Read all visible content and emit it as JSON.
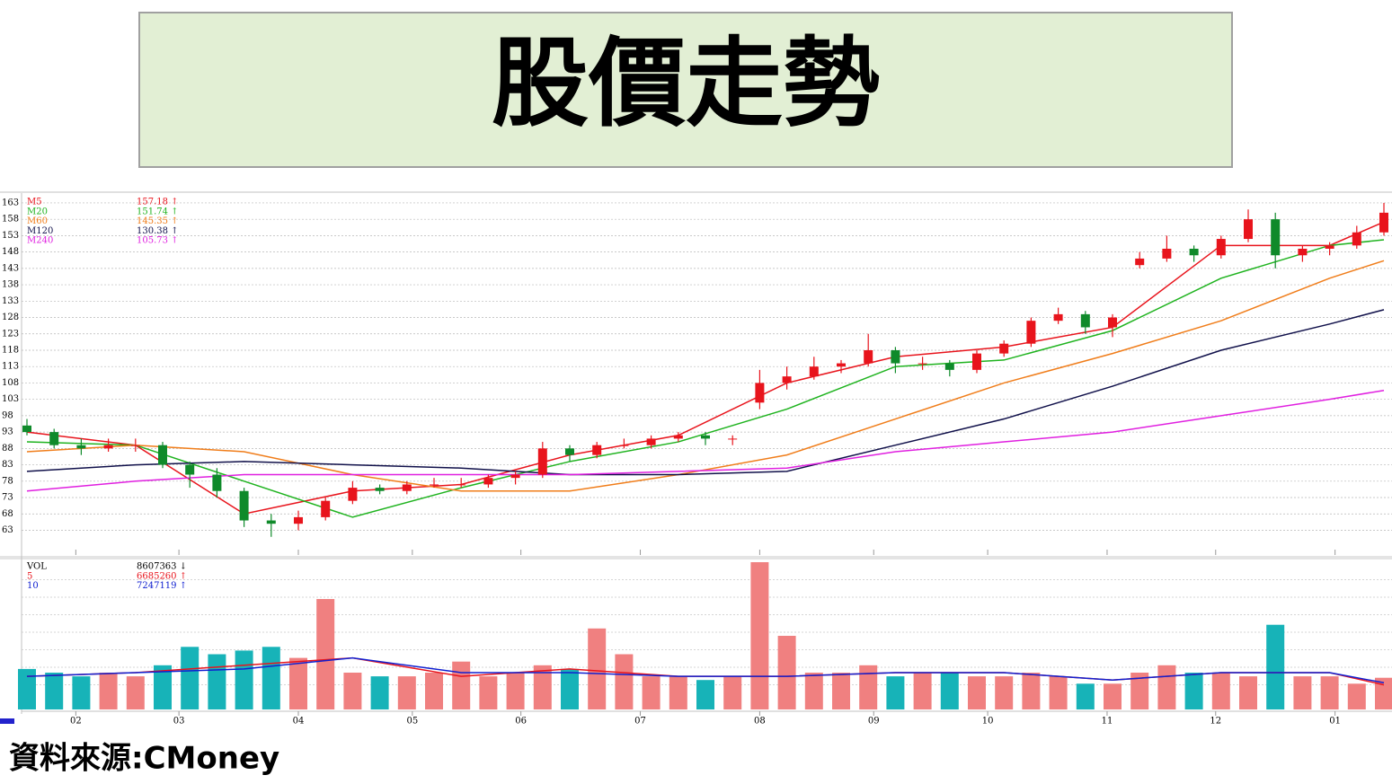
{
  "header": {
    "title": "股價走勢"
  },
  "source": "資料來源:CMoney",
  "chart_data": [
    {
      "type": "candlestick",
      "x": [
        0,
        5,
        10,
        15,
        20,
        25,
        30,
        35,
        40,
        45,
        50,
        55,
        60,
        65,
        70,
        75,
        80,
        85,
        90,
        95,
        100,
        105,
        110,
        115,
        120,
        125,
        130,
        135,
        140,
        145,
        150,
        155,
        160,
        165,
        170,
        175,
        180,
        185,
        190,
        195,
        200,
        205,
        210,
        215,
        220,
        225,
        230,
        235,
        240,
        245,
        250
      ],
      "open": [
        95,
        93,
        89,
        88,
        89,
        89,
        83,
        80,
        75,
        66,
        65,
        67,
        72,
        76,
        75,
        77,
        77,
        77,
        79,
        80,
        88,
        86,
        89,
        89,
        91,
        92,
        91,
        102,
        108,
        110,
        113,
        114,
        118,
        114,
        114,
        112,
        117,
        120,
        127,
        129,
        125,
        144,
        146,
        149,
        147,
        152,
        158,
        147,
        149,
        150,
        154
      ],
      "close": [
        93,
        89,
        88,
        89,
        89,
        83,
        80,
        75,
        66,
        65,
        67,
        72,
        76,
        75,
        77,
        77,
        77,
        79,
        80,
        88,
        86,
        89,
        89,
        91,
        92,
        91,
        91,
        108,
        110,
        113,
        114,
        118,
        114,
        114,
        112,
        117,
        120,
        127,
        129,
        125,
        128,
        146,
        149,
        147,
        152,
        158,
        147,
        149,
        150,
        154,
        160
      ],
      "high": [
        97,
        94,
        91,
        91,
        91,
        90,
        84,
        82,
        76,
        68,
        69,
        73,
        78,
        77,
        78,
        79,
        79,
        80,
        81,
        90,
        89,
        90,
        91,
        92,
        93,
        93,
        92,
        112,
        113,
        116,
        115,
        123,
        119,
        116,
        115,
        118,
        121,
        128,
        131,
        130,
        129,
        148,
        153,
        150,
        153,
        161,
        160,
        150,
        151,
        156,
        163
      ],
      "low": [
        92,
        88,
        86,
        87,
        87,
        82,
        76,
        73,
        64,
        61,
        63,
        66,
        71,
        74,
        74,
        76,
        76,
        76,
        77,
        79,
        84,
        85,
        88,
        88,
        90,
        89,
        89,
        100,
        106,
        109,
        111,
        113,
        111,
        112,
        110,
        111,
        116,
        119,
        126,
        123,
        122,
        143,
        145,
        145,
        146,
        151,
        143,
        145,
        147,
        149,
        153
      ],
      "up_color": "#e8141c",
      "down_color": "#0f8a2a",
      "xlim": [
        0,
        250
      ],
      "xticks": [
        {
          "value": 9,
          "label": "02"
        },
        {
          "value": 28,
          "label": "03"
        },
        {
          "value": 50,
          "label": "04"
        },
        {
          "value": 71,
          "label": "05"
        },
        {
          "value": 91,
          "label": "06"
        },
        {
          "value": 113,
          "label": "07"
        },
        {
          "value": 135,
          "label": "08"
        },
        {
          "value": 156,
          "label": "09"
        },
        {
          "value": 177,
          "label": "10"
        },
        {
          "value": 199,
          "label": "11"
        },
        {
          "value": 219,
          "label": "12"
        },
        {
          "value": 241,
          "label": "01"
        }
      ],
      "ylim": [
        56,
        166
      ],
      "yticks": [
        63,
        68,
        73,
        78,
        83,
        88,
        93,
        98,
        103,
        108,
        113,
        118,
        123,
        128,
        133,
        138,
        143,
        148,
        153,
        158,
        163
      ],
      "grid": true,
      "lines": {
        "x": [
          0,
          20,
          40,
          60,
          80,
          100,
          120,
          140,
          160,
          180,
          200,
          220,
          240,
          250
        ],
        "series": [
          {
            "name": "M5",
            "color": "#e8141c",
            "values": [
              93,
              89,
              68,
              75,
              77,
              86,
              92,
              108,
              116,
              119,
              125,
              150,
              150,
              157.18
            ],
            "last_label": "157.18 ↑"
          },
          {
            "name": "M20",
            "color": "#1fb31f",
            "values": [
              90,
              89,
              78,
              67,
              76,
              84,
              90,
              100,
              113,
              115,
              124,
              140,
              150,
              151.74
            ],
            "last_label": "151.74 ↑"
          },
          {
            "name": "M60",
            "color": "#f07d1a",
            "values": [
              87,
              89,
              87,
              80,
              75,
              75,
              80,
              86,
              97,
              108,
              117,
              127,
              140,
              145.35
            ],
            "last_label": "145.35 ↑"
          },
          {
            "name": "M120",
            "color": "#10104a",
            "values": [
              81,
              83,
              84,
              83,
              82,
              80,
              80,
              81,
              89,
              97,
              107,
              118,
              126,
              130.38
            ],
            "last_label": "130.38 ↑"
          },
          {
            "name": "M240",
            "color": "#e020e0",
            "values": [
              75,
              78,
              80,
              80,
              80,
              80,
              81,
              82,
              87,
              90,
              93,
              98,
              103,
              105.73
            ],
            "last_label": "105.73 ↑"
          }
        ]
      }
    },
    {
      "type": "volume",
      "name": "VOL",
      "last_label": "8607363 ↓",
      "values": [
        11000000,
        10000000,
        9000000,
        10000000,
        9000000,
        12000000,
        17000000,
        15000000,
        16000000,
        17000000,
        14000000,
        30000000,
        10000000,
        9000000,
        9000000,
        10000000,
        13000000,
        9000000,
        10000000,
        12000000,
        11000000,
        22000000,
        15000000,
        9000000,
        9000000,
        8000000,
        9000000,
        40000000,
        20000000,
        10000000,
        10000000,
        12000000,
        9000000,
        10000000,
        10000000,
        9000000,
        9000000,
        10000000,
        9000000,
        7000000,
        7000000,
        10000000,
        12000000,
        10000000,
        10000000,
        9000000,
        23000000,
        9000000,
        9000000,
        7000000,
        8607363
      ],
      "up_color": "#f08080",
      "down_color": "#17b3b8",
      "ylim": [
        0,
        40000000
      ],
      "lines": {
        "x": [
          0,
          20,
          40,
          60,
          80,
          100,
          120,
          140,
          160,
          180,
          200,
          220,
          240,
          250
        ],
        "series": [
          {
            "name": "5",
            "color": "#e8141c",
            "values": [
              9000000,
              10000000,
              12000000,
              14000000,
              9000000,
              11000000,
              9000000,
              9000000,
              10000000,
              10000000,
              8000000,
              10000000,
              10000000,
              6685260
            ],
            "last_label": "6685260 ↑"
          },
          {
            "name": "10",
            "color": "#1020d0",
            "values": [
              9000000,
              10000000,
              11000000,
              14000000,
              10000000,
              10000000,
              9000000,
              9000000,
              10000000,
              10000000,
              8000000,
              10000000,
              10000000,
              7247119
            ],
            "last_label": "7247119 ↑"
          }
        ]
      }
    }
  ]
}
